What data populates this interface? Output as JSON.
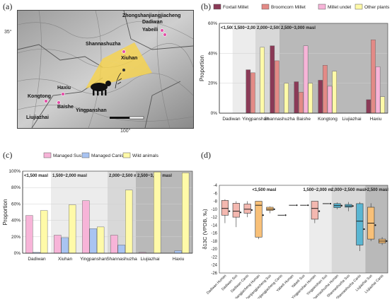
{
  "panels": {
    "a": {
      "label": "(a)",
      "tick_35": "35°",
      "tick_100": "100°",
      "sites": [
        "Zhongshanjiangjiacheng",
        "Dadiwan",
        "Yabeili",
        "Shannashuzha",
        "Xiuhan",
        "Haxiu",
        "Kongtong",
        "Baishe",
        "Yingpanshan",
        "Liujiazhai"
      ]
    },
    "b": {
      "label": "(b)"
    },
    "c": {
      "label": "(c)"
    },
    "d": {
      "label": "(d)"
    }
  },
  "chart_data": [
    {
      "id": "b",
      "type": "bar",
      "ylabel": "Proportion",
      "ylim": [
        0,
        60
      ],
      "yticks": [
        "0%",
        "20%",
        "40%",
        "60%"
      ],
      "categories": [
        "Dadiwan",
        "Yingpanshan",
        "Shannashuzha",
        "Baishe",
        "Kongtong",
        "Liujiazhai",
        "Haxiu"
      ],
      "series": [
        {
          "name": "Foxtail Millet",
          "color": "#8b3a57",
          "values": [
            0,
            29,
            45,
            21,
            22,
            0,
            9
          ]
        },
        {
          "name": "Broomcorn Millet",
          "color": "#e38a86",
          "values": [
            0,
            27,
            35,
            14,
            32,
            0,
            49
          ]
        },
        {
          "name": "Millet undet",
          "color": "#f7b4d8",
          "values": [
            0,
            0,
            0,
            45,
            18,
            0,
            31
          ]
        },
        {
          "name": "Other plants",
          "color": "#fffaa8",
          "values": [
            0,
            44,
            20,
            20,
            28,
            0,
            11
          ]
        }
      ],
      "zones": [
        {
          "label": "<1,500 masl",
          "color": "#ffffff"
        },
        {
          "label": "1,500~2,000 masl",
          "color": "#ececec"
        },
        {
          "label": "2,000~2,500 masl",
          "color": "#d8d8d8"
        },
        {
          "label": "2,500~3,000 masl",
          "color": "#b9b9b9"
        }
      ]
    },
    {
      "id": "c",
      "type": "bar",
      "ylabel": "Proportion",
      "ylim": [
        0,
        100
      ],
      "yticks": [
        "0%",
        "20%",
        "40%",
        "60%",
        "80%",
        "100%"
      ],
      "categories": [
        "Dadiwan",
        "Xiuhan",
        "Yingpanshan",
        "Shannashuzha",
        "Liujiazhai",
        "Haxiu"
      ],
      "series": [
        {
          "name": "Managed Sus",
          "color": "#f7b4d8",
          "values": [
            46,
            22,
            64,
            22,
            1,
            0
          ]
        },
        {
          "name": "Managed Canis",
          "color": "#a9c4f2",
          "values": [
            1,
            19,
            30,
            10,
            0,
            3
          ]
        },
        {
          "name": "Wild animals",
          "color": "#fffaa8",
          "values": [
            52,
            59,
            32,
            77,
            99,
            98
          ]
        }
      ],
      "zones": [
        {
          "label": "<1,500 masl",
          "color": "#ffffff"
        },
        {
          "label": "1,500~2,000 masl",
          "color": "#ececec"
        },
        {
          "label": "2,000~2,500 masl",
          "color": "#d8d8d8"
        },
        {
          "label": "2,500~3,000 masl",
          "color": "#b9b9b9"
        }
      ]
    },
    {
      "id": "d",
      "type": "box",
      "ylabel": "δ13C (VPDB, ‰)",
      "ylim": [
        -26,
        -4
      ],
      "yticks": [
        "-4",
        "-6",
        "-8",
        "-10",
        "-12",
        "-14",
        "-16",
        "-18",
        "-20",
        "-22",
        "-24",
        "-26"
      ],
      "zones": [
        {
          "label": "<1,500 masl",
          "color": "#ffffff"
        },
        {
          "label": "1,500~2,000 masl",
          "color": "#ececec"
        },
        {
          "label": "2,000~2,500 masl",
          "color": "#d8d8d8"
        },
        {
          "label": ">2,500 masl",
          "color": "#b9b9b9"
        }
      ],
      "groups": [
        {
          "name": "Dadiwan Human",
          "color": "#f4b8b0",
          "q1": -11.5,
          "median": -9.8,
          "q3": -7.8,
          "min": -13.5,
          "max": -7.5,
          "mean": -10.5
        },
        {
          "name": "Dadiwan Sus",
          "color": "#f4b8b0",
          "q1": -12,
          "median": -10.5,
          "q3": -8.5,
          "min": -14.5,
          "max": -8,
          "mean": -10.8
        },
        {
          "name": "Dadiwan Canis",
          "color": "#f4b8b0",
          "q1": -11,
          "median": -10,
          "q3": -8.7,
          "min": -12,
          "max": -8,
          "mean": -10.2
        },
        {
          "name": "Zhongshanjiangjiacheng Human",
          "color": "#f8c078",
          "q1": -17,
          "median": -9,
          "q3": -8,
          "min": -17.5,
          "max": -8,
          "mean": -11.5
        },
        {
          "name": "Zhongshanjiangjiacheng Sus",
          "color": "#f8c078",
          "q1": -10.3,
          "median": -10,
          "q3": -9.5,
          "min": -11,
          "max": -9.3,
          "mean": -10
        },
        {
          "name": "Zhongshanjiangjiacheng Canis",
          "color": "#f8c078",
          "q1": null,
          "median": -11.5,
          "q3": null,
          "min": -11.5,
          "max": -11.5,
          "mean": -11.5
        },
        {
          "name": "Yabeili Human",
          "color": "#ffffff",
          "q1": null,
          "median": -9,
          "q3": null,
          "min": -9,
          "max": -9,
          "mean": -9
        },
        {
          "name": "Yabeili Sus",
          "color": "#ffffff",
          "q1": null,
          "median": -9,
          "q3": null,
          "min": -9,
          "max": -9,
          "mean": -9
        },
        {
          "name": "Yingpanshan Human",
          "color": "#f4b8b0",
          "q1": -12.5,
          "median": -9.8,
          "q3": -8,
          "min": -13.5,
          "max": -8,
          "mean": -10.5
        },
        {
          "name": "Yingpanshan Sus",
          "color": "#f4b8b0",
          "q1": null,
          "median": -8.6,
          "q3": null,
          "min": -8.6,
          "max": -8.6,
          "mean": -8.6
        },
        {
          "name": "Shannashuzha Human",
          "color": "#5ab6d2",
          "q1": -9.6,
          "median": -9.1,
          "q3": -8.6,
          "min": -10,
          "max": -8.3,
          "mean": -9.1
        },
        {
          "name": "Shannashuzha Sus",
          "color": "#5ab6d2",
          "q1": -9.5,
          "median": -9.2,
          "q3": -8.8,
          "min": -10.5,
          "max": -8.2,
          "mean": -9.2
        },
        {
          "name": "Shannashuzha Canis",
          "color": "#5ab6d2",
          "q1": -19,
          "median": -13,
          "q3": -8.6,
          "min": -20.5,
          "max": -8.2,
          "mean": -15
        },
        {
          "name": "Liujiazhai Sus",
          "color": "#f8c078",
          "q1": -17.5,
          "median": -13.5,
          "q3": -9.5,
          "min": -18,
          "max": -8.5,
          "mean": -14
        },
        {
          "name": "Liujiazhai Canis",
          "color": "#f8c078",
          "q1": -18.5,
          "median": -18,
          "q3": -17.5,
          "min": -19,
          "max": -17,
          "mean": -18
        }
      ]
    }
  ]
}
